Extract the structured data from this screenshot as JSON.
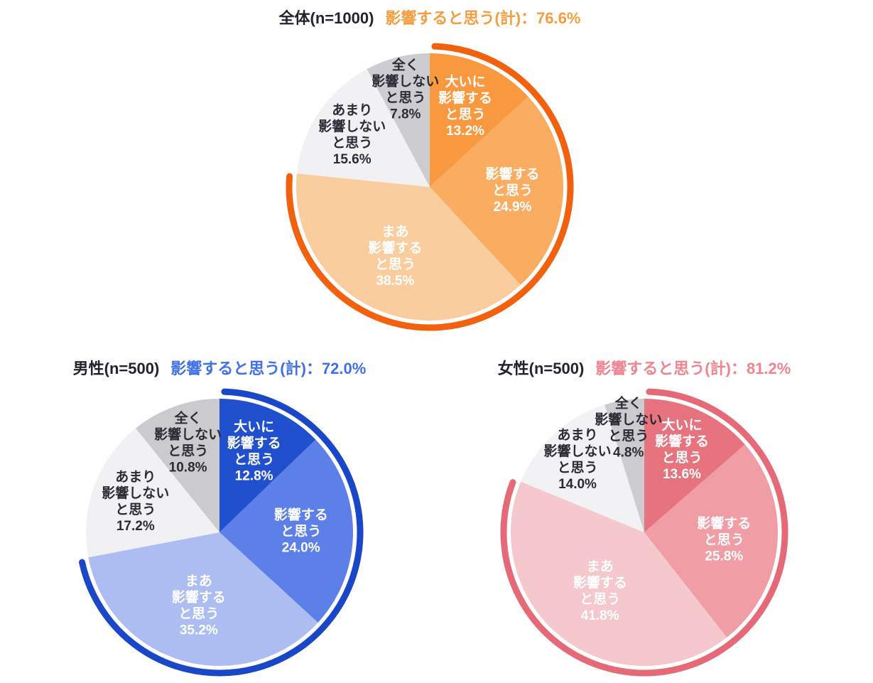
{
  "page": {
    "background": "#FFFFFF",
    "title_text_color": "#23232E",
    "gray_label_text_color": "#2B2B35"
  },
  "chart_data": [
    {
      "type": "pie",
      "group": "overall",
      "title": "全体(n=1000)",
      "n": 1000,
      "total_label": "影響すると思う(計)：76.6%",
      "total_agree_pct": 76.6,
      "categories": [
        "大いに影響すると思う",
        "影響すると思う",
        "まあ影響すると思う",
        "あまり影響しないと思う",
        "全く影響しないと思う"
      ],
      "values": [
        13.2,
        24.9,
        38.5,
        15.6,
        7.8
      ],
      "value_labels": [
        "13.2%",
        "24.9%",
        "38.5%",
        "15.6%",
        "7.8%"
      ],
      "label_lines": [
        [
          "大いに",
          "影響する",
          "と思う"
        ],
        [
          "影響する",
          "と思う"
        ],
        [
          "まあ",
          "影響する",
          "と思う"
        ],
        [
          "あまり",
          "影響しない",
          "と思う"
        ],
        [
          "全く",
          "影響しない",
          "と思う"
        ]
      ],
      "label_r": [
        0.66,
        0.62,
        0.58,
        0.7,
        0.75
      ],
      "start_angle_deg": 0,
      "direction": "clockwise",
      "highlight_arc": {
        "start_deg": 2,
        "end_deg": 274.3
      },
      "colors": {
        "slices": [
          "#F8993F",
          "#FAAC60",
          "#FACD9E",
          "#F1F1F3",
          "#CDCDD1"
        ],
        "label_text": [
          "#FFFFFF",
          "#FFFFFF",
          "#FFFFFF",
          "#2B2B35",
          "#2B2B35"
        ],
        "arc": "#F2610D",
        "total_label": "#F59C3F"
      }
    },
    {
      "type": "pie",
      "group": "male",
      "title": "男性(n=500)",
      "n": 500,
      "total_label": "影響すると思う(計)：72.0%",
      "total_agree_pct": 72.0,
      "categories": [
        "大いに影響すると思う",
        "影響すると思う",
        "まあ影響すると思う",
        "あまり影響しないと思う",
        "全く影響しないと思う"
      ],
      "values": [
        12.8,
        24.0,
        35.2,
        17.2,
        10.8
      ],
      "value_labels": [
        "12.8%",
        "24.0%",
        "35.2%",
        "17.2%",
        "10.8%"
      ],
      "label_lines": [
        [
          "大いに",
          "影響する",
          "と思う"
        ],
        [
          "影響する",
          "と思う"
        ],
        [
          "まあ",
          "影響する",
          "と思う"
        ],
        [
          "あまり",
          "影響しない",
          "と思う"
        ],
        [
          "全く",
          "影響しない",
          "と思う"
        ]
      ],
      "label_r": [
        0.66,
        0.61,
        0.57,
        0.67,
        0.71
      ],
      "start_angle_deg": 0,
      "direction": "clockwise",
      "highlight_arc": {
        "start_deg": 2,
        "end_deg": 257.7
      },
      "colors": {
        "slices": [
          "#2150CE",
          "#5C7FE8",
          "#ADBDF2",
          "#F1F1F3",
          "#CBCBCE"
        ],
        "label_text": [
          "#FFFFFF",
          "#FFFFFF",
          "#FFFFFF",
          "#2B2B35",
          "#2B2B35"
        ],
        "arc": "#1A46C8",
        "total_label": "#4070E8"
      }
    },
    {
      "type": "pie",
      "group": "female",
      "title": "女性(n=500)",
      "n": 500,
      "total_label": "影響すると思う(計)：81.2%",
      "total_agree_pct": 81.2,
      "categories": [
        "大いに影響すると思う",
        "影響すると思う",
        "まあ影響すると思う",
        "あまり影響しないと思う",
        "全く影響しないと思う"
      ],
      "values": [
        13.6,
        25.8,
        41.8,
        14.0,
        4.8
      ],
      "value_labels": [
        "13.6%",
        "25.8%",
        "41.8%",
        "14.0%",
        "4.8%"
      ],
      "label_lines": [
        [
          "大いに",
          "影響する",
          "と思う"
        ],
        [
          "影響する",
          "と思う"
        ],
        [
          "まあ",
          "影響する",
          "と思う"
        ],
        [
          "あまり",
          "影響しない",
          "と思う"
        ],
        [
          "全く",
          "影響しない",
          "と思う"
        ]
      ],
      "label_r": [
        0.68,
        0.6,
        0.55,
        0.74,
        0.79
      ],
      "start_angle_deg": 0,
      "direction": "clockwise",
      "highlight_arc": {
        "start_deg": 2,
        "end_deg": 290.8
      },
      "colors": {
        "slices": [
          "#E7737F",
          "#F09DA6",
          "#F5C8CD",
          "#F2F2F4",
          "#CCCCCF"
        ],
        "label_text": [
          "#FFFFFF",
          "#FFFFFF",
          "#FFFFFF",
          "#2B2B35",
          "#2B2B35"
        ],
        "arc": "#E56976",
        "total_label": "#F0838F"
      }
    }
  ]
}
